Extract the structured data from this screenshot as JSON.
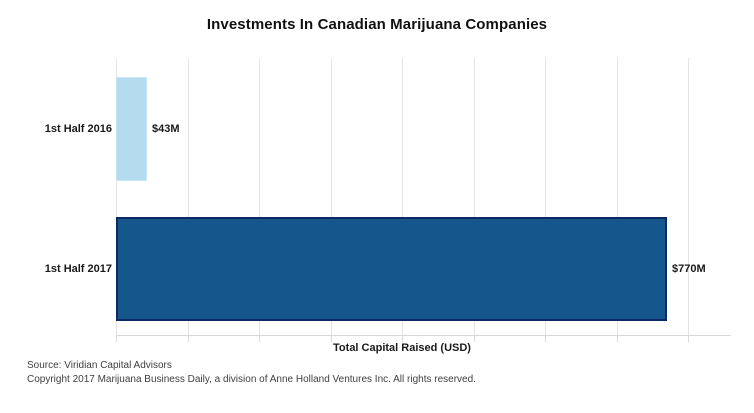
{
  "chart_data": {
    "type": "bar",
    "orientation": "horizontal",
    "title": "Investments In Canadian Marijuana Companies",
    "categories": [
      "1st Half 2016",
      "1st Half 2017"
    ],
    "values": [
      43,
      770
    ],
    "value_labels": [
      "$43M",
      "$770M"
    ],
    "xlabel": "Total Capital Raised (USD)",
    "ylabel": "",
    "xlim": [
      0,
      860
    ],
    "gridline_step": 100,
    "gridline_max": 800,
    "grid": "vertical-only",
    "legend_position": "none",
    "series": [
      {
        "name": "Total Capital Raised",
        "bar_styles": [
          {
            "fill": "#b5dbee",
            "border": "#c9e6f4",
            "border_width": 1
          },
          {
            "fill": "#15578a",
            "border": "#0d2a68",
            "border_width": 2
          }
        ]
      }
    ]
  },
  "colors": {
    "gridline": "#e4e4e4",
    "axis_line": "#d9d9d9",
    "title_text": "#111111",
    "label_text": "#1a1a1a",
    "footer_text": "#404040",
    "background": "#ffffff"
  },
  "footer": {
    "source": "Source: Viridian Capital Advisors",
    "copyright": "Copyright 2017 Marijuana Business Daily, a division of Anne Holland Ventures Inc. All rights reserved."
  }
}
